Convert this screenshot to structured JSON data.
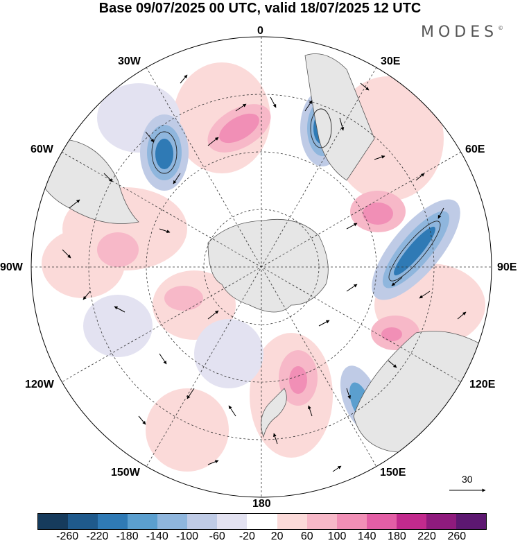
{
  "header": {
    "title": "Base 09/07/2025 00 UTC, valid 18/07/2025 12 UTC",
    "brand": "MODES",
    "brand_mark": "©"
  },
  "map": {
    "projection": "south-polar-stereographic",
    "longitude_labels": {
      "top": "0",
      "top_right": "30E",
      "right_upper": "60E",
      "right": "90E",
      "right_lower": "120E",
      "bottom_right": "150E",
      "bottom": "180",
      "bottom_left": "150W",
      "left_lower": "120W",
      "left": "90W",
      "left_upper": "60W",
      "top_left": "30W"
    },
    "colors": {
      "land": "#e6e6e6",
      "coast": "#555555",
      "grid": "#333333"
    }
  },
  "vector_scale": {
    "label": "30"
  },
  "colorbar": {
    "colors": [
      "#163b5c",
      "#1f5a8c",
      "#2f7ab5",
      "#5b9fcf",
      "#8fb6dd",
      "#bfcbe6",
      "#e3e2f1",
      "#ffffff",
      "#fbdad9",
      "#f7b8c8",
      "#f18fb6",
      "#e35ea5",
      "#c22a8d",
      "#8f1b7d",
      "#5d1871"
    ],
    "ticks": [
      "-260",
      "-220",
      "-180",
      "-140",
      "-100",
      "-60",
      "-20",
      "20",
      "60",
      "100",
      "140",
      "180",
      "220",
      "260"
    ]
  }
}
